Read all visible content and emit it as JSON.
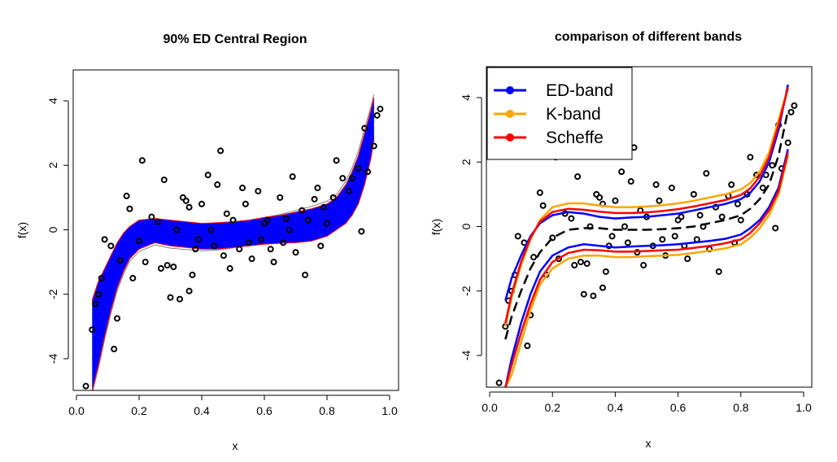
{
  "chart_data": [
    {
      "type": "area",
      "title": "90% ED Central Region",
      "xlabel": "x",
      "ylabel": "f(x)",
      "xlim": [
        0.0,
        1.0
      ],
      "ylim": [
        -5,
        5
      ],
      "x_ticks": [
        "0.0",
        "0.2",
        "0.4",
        "0.6",
        "0.8",
        "1.0"
      ],
      "y_ticks": [
        "-4",
        "-2",
        "0",
        "2",
        "4"
      ],
      "band_color": "#0000ff",
      "curve_color": "#808080",
      "border_color": "#ff0000",
      "band": {
        "x": [
          0.05,
          0.07,
          0.09,
          0.11,
          0.13,
          0.15,
          0.17,
          0.2,
          0.25,
          0.3,
          0.35,
          0.4,
          0.45,
          0.5,
          0.55,
          0.6,
          0.65,
          0.7,
          0.75,
          0.8,
          0.83,
          0.86,
          0.88,
          0.9,
          0.92,
          0.94,
          0.95
        ],
        "upper": [
          -2.2,
          -1.6,
          -1.2,
          -0.8,
          -0.4,
          -0.1,
          0.1,
          0.3,
          0.35,
          0.3,
          0.25,
          0.2,
          0.22,
          0.25,
          0.3,
          0.38,
          0.45,
          0.55,
          0.65,
          0.8,
          1.0,
          1.4,
          1.8,
          2.3,
          3.0,
          3.7,
          4.1
        ],
        "lower": [
          -5.0,
          -4.2,
          -3.3,
          -2.5,
          -1.8,
          -1.3,
          -0.9,
          -0.6,
          -0.4,
          -0.5,
          -0.55,
          -0.6,
          -0.6,
          -0.55,
          -0.5,
          -0.45,
          -0.42,
          -0.4,
          -0.35,
          -0.2,
          0.0,
          0.2,
          0.45,
          0.8,
          1.4,
          2.2,
          2.8
        ]
      },
      "points": [
        {
          "x": 0.03,
          "y": -4.85
        },
        {
          "x": 0.05,
          "y": -3.1
        },
        {
          "x": 0.06,
          "y": -2.3
        },
        {
          "x": 0.07,
          "y": -2.0
        },
        {
          "x": 0.08,
          "y": -1.5
        },
        {
          "x": 0.09,
          "y": -0.3
        },
        {
          "x": 0.11,
          "y": -0.5
        },
        {
          "x": 0.12,
          "y": -3.7
        },
        {
          "x": 0.13,
          "y": -2.75
        },
        {
          "x": 0.14,
          "y": -0.95
        },
        {
          "x": 0.16,
          "y": 1.05
        },
        {
          "x": 0.17,
          "y": 0.65
        },
        {
          "x": 0.18,
          "y": -1.5
        },
        {
          "x": 0.2,
          "y": -0.35
        },
        {
          "x": 0.21,
          "y": 2.15
        },
        {
          "x": 0.22,
          "y": -1.0
        },
        {
          "x": 0.24,
          "y": 0.4
        },
        {
          "x": 0.26,
          "y": 0.25
        },
        {
          "x": 0.27,
          "y": -1.2
        },
        {
          "x": 0.28,
          "y": 1.55
        },
        {
          "x": 0.29,
          "y": -1.1
        },
        {
          "x": 0.3,
          "y": -2.1
        },
        {
          "x": 0.31,
          "y": -1.15
        },
        {
          "x": 0.32,
          "y": 0.0
        },
        {
          "x": 0.33,
          "y": -2.15
        },
        {
          "x": 0.34,
          "y": 1.0
        },
        {
          "x": 0.35,
          "y": 0.9
        },
        {
          "x": 0.36,
          "y": 0.7
        },
        {
          "x": 0.36,
          "y": -1.9
        },
        {
          "x": 0.37,
          "y": -1.4
        },
        {
          "x": 0.38,
          "y": -0.6
        },
        {
          "x": 0.39,
          "y": -0.3
        },
        {
          "x": 0.4,
          "y": 0.8
        },
        {
          "x": 0.42,
          "y": 1.7
        },
        {
          "x": 0.43,
          "y": 0.0
        },
        {
          "x": 0.44,
          "y": -0.5
        },
        {
          "x": 0.45,
          "y": 1.4
        },
        {
          "x": 0.46,
          "y": 2.45
        },
        {
          "x": 0.47,
          "y": -0.8
        },
        {
          "x": 0.48,
          "y": 0.5
        },
        {
          "x": 0.49,
          "y": -1.2
        },
        {
          "x": 0.5,
          "y": 0.3
        },
        {
          "x": 0.52,
          "y": -0.6
        },
        {
          "x": 0.53,
          "y": 1.3
        },
        {
          "x": 0.54,
          "y": 0.8
        },
        {
          "x": 0.55,
          "y": -0.4
        },
        {
          "x": 0.56,
          "y": -0.9
        },
        {
          "x": 0.58,
          "y": 1.2
        },
        {
          "x": 0.59,
          "y": -0.3
        },
        {
          "x": 0.6,
          "y": 0.2
        },
        {
          "x": 0.61,
          "y": 0.3
        },
        {
          "x": 0.62,
          "y": -0.6
        },
        {
          "x": 0.63,
          "y": -1.0
        },
        {
          "x": 0.65,
          "y": 1.0
        },
        {
          "x": 0.66,
          "y": -0.4
        },
        {
          "x": 0.67,
          "y": 0.35
        },
        {
          "x": 0.68,
          "y": 0.0
        },
        {
          "x": 0.69,
          "y": 1.65
        },
        {
          "x": 0.7,
          "y": -0.7
        },
        {
          "x": 0.72,
          "y": 0.6
        },
        {
          "x": 0.73,
          "y": -1.4
        },
        {
          "x": 0.74,
          "y": 0.3
        },
        {
          "x": 0.76,
          "y": 0.95
        },
        {
          "x": 0.77,
          "y": 1.3
        },
        {
          "x": 0.78,
          "y": -0.5
        },
        {
          "x": 0.79,
          "y": 0.7
        },
        {
          "x": 0.8,
          "y": 0.2
        },
        {
          "x": 0.82,
          "y": 1.0
        },
        {
          "x": 0.83,
          "y": 2.15
        },
        {
          "x": 0.85,
          "y": 1.6
        },
        {
          "x": 0.87,
          "y": 1.2
        },
        {
          "x": 0.88,
          "y": 1.6
        },
        {
          "x": 0.9,
          "y": 1.9
        },
        {
          "x": 0.91,
          "y": -0.05
        },
        {
          "x": 0.92,
          "y": 3.15
        },
        {
          "x": 0.93,
          "y": 1.8
        },
        {
          "x": 0.95,
          "y": 2.6
        },
        {
          "x": 0.96,
          "y": 3.55
        },
        {
          "x": 0.97,
          "y": 3.75
        }
      ]
    },
    {
      "type": "line",
      "title": "comparison of different bands",
      "xlabel": "x",
      "ylabel": "f(x)",
      "xlim": [
        0.0,
        1.0
      ],
      "ylim": [
        -5,
        5
      ],
      "x_ticks": [
        "0.0",
        "0.2",
        "0.4",
        "0.6",
        "0.8",
        "1.0"
      ],
      "y_ticks": [
        "-4",
        "-2",
        "0",
        "2",
        "4"
      ],
      "legend_position": "top-left",
      "x": [
        0.05,
        0.07,
        0.1,
        0.13,
        0.16,
        0.2,
        0.25,
        0.3,
        0.35,
        0.4,
        0.45,
        0.5,
        0.55,
        0.6,
        0.65,
        0.7,
        0.75,
        0.8,
        0.83,
        0.86,
        0.89,
        0.92,
        0.95
      ],
      "series": [
        {
          "name": "ED-band",
          "color": "#0000ff",
          "upper": [
            -2.3,
            -1.6,
            -0.9,
            -0.3,
            0.1,
            0.35,
            0.45,
            0.4,
            0.3,
            0.25,
            0.28,
            0.3,
            0.35,
            0.4,
            0.5,
            0.6,
            0.7,
            0.85,
            1.05,
            1.4,
            2.0,
            3.0,
            4.4
          ],
          "lower": [
            -5.0,
            -4.1,
            -3.0,
            -2.1,
            -1.4,
            -0.9,
            -0.65,
            -0.55,
            -0.6,
            -0.65,
            -0.62,
            -0.6,
            -0.58,
            -0.55,
            -0.5,
            -0.45,
            -0.38,
            -0.25,
            -0.05,
            0.2,
            0.6,
            1.2,
            2.4
          ]
        },
        {
          "name": "K-band",
          "color": "#ffa500",
          "upper": [
            -3.1,
            -2.2,
            -1.2,
            -0.4,
            0.2,
            0.6,
            0.72,
            0.72,
            0.65,
            0.6,
            0.6,
            0.62,
            0.66,
            0.72,
            0.8,
            0.9,
            1.0,
            1.15,
            1.35,
            1.7,
            2.3,
            3.3,
            4.3
          ],
          "lower": [
            -5.0,
            -4.6,
            -3.6,
            -2.6,
            -1.8,
            -1.3,
            -1.0,
            -0.9,
            -0.9,
            -0.95,
            -0.95,
            -0.92,
            -0.9,
            -0.88,
            -0.82,
            -0.75,
            -0.68,
            -0.55,
            -0.35,
            -0.05,
            0.35,
            1.0,
            2.2
          ]
        },
        {
          "name": "Scheffe",
          "color": "#ff0000",
          "upper": [
            -3.0,
            -2.1,
            -1.1,
            -0.35,
            0.15,
            0.45,
            0.55,
            0.52,
            0.46,
            0.42,
            0.42,
            0.44,
            0.48,
            0.54,
            0.62,
            0.72,
            0.82,
            0.98,
            1.18,
            1.55,
            2.15,
            3.15,
            4.3
          ],
          "lower": [
            -5.0,
            -4.3,
            -3.3,
            -2.4,
            -1.65,
            -1.1,
            -0.82,
            -0.72,
            -0.74,
            -0.78,
            -0.78,
            -0.76,
            -0.74,
            -0.72,
            -0.66,
            -0.6,
            -0.52,
            -0.4,
            -0.2,
            0.1,
            0.5,
            1.1,
            2.3
          ]
        },
        {
          "name": "",
          "color": "#000000",
          "dashed": true,
          "values": [
            -3.5,
            -2.8,
            -2.0,
            -1.3,
            -0.8,
            -0.35,
            -0.1,
            -0.05,
            -0.05,
            -0.1,
            -0.1,
            -0.1,
            -0.08,
            -0.05,
            0.0,
            0.1,
            0.2,
            0.35,
            0.55,
            0.85,
            1.3,
            2.2,
            3.6
          ]
        }
      ]
    }
  ]
}
